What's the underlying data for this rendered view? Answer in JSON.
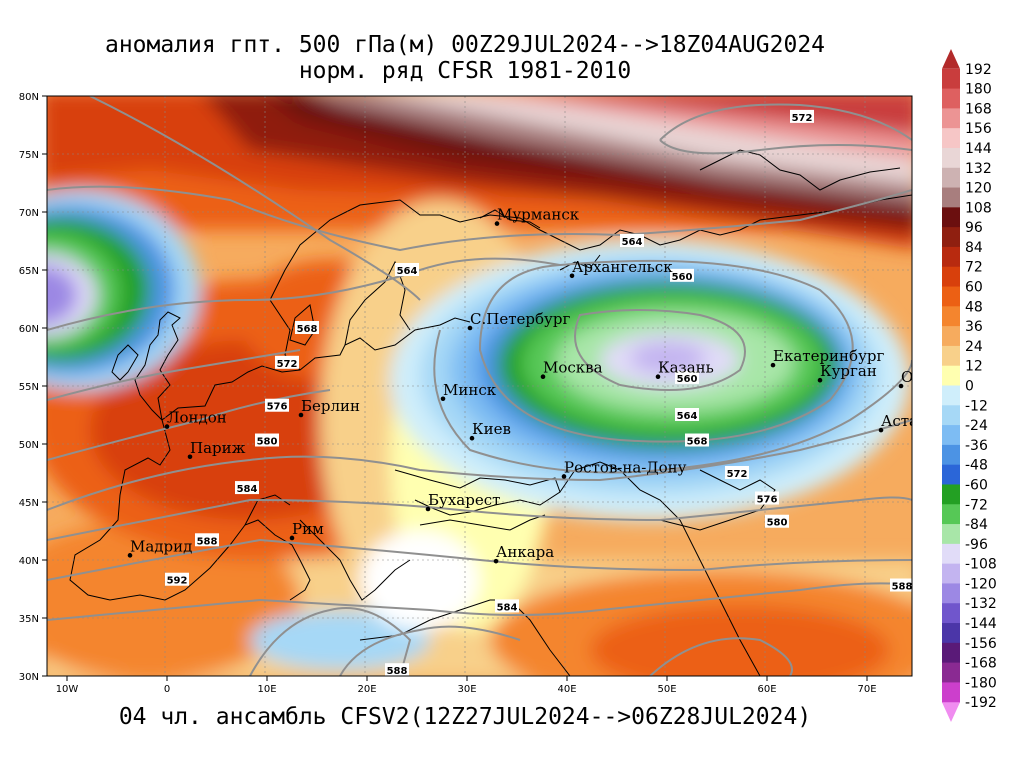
{
  "header": {
    "line1": "аномалия гпт. 500 гПа(м) 00Z29JUL2024-->18Z04AUG2024",
    "line2": "норм. ряд CFSR 1981-2010"
  },
  "footer": "04 чл. ансамбль CFSV2(12Z27JUL2024-->06Z28JUL2024)",
  "axes": {
    "lon_ticks": [
      "10W",
      "0",
      "10E",
      "20E",
      "30E",
      "40E",
      "50E",
      "60E",
      "70E"
    ],
    "lat_ticks": [
      "30N",
      "35N",
      "40N",
      "45N",
      "50N",
      "55N",
      "60N",
      "65N",
      "70N",
      "75N",
      "80N"
    ]
  },
  "cities": [
    {
      "name": "Мурманск",
      "lon": 33,
      "lat": 69
    },
    {
      "name": "Архангельск",
      "lon": 40.5,
      "lat": 64.5
    },
    {
      "name": "С.Петербург",
      "lon": 30.3,
      "lat": 60
    },
    {
      "name": "Москва",
      "lon": 37.6,
      "lat": 55.8
    },
    {
      "name": "Казань",
      "lon": 49.1,
      "lat": 55.8
    },
    {
      "name": "Екатеринбург",
      "lon": 60.6,
      "lat": 56.8
    },
    {
      "name": "Курган",
      "lon": 65.3,
      "lat": 55.5
    },
    {
      "name": "Омск",
      "lon": 73.4,
      "lat": 55
    },
    {
      "name": "Астана",
      "lon": 71.4,
      "lat": 51.2
    },
    {
      "name": "Минск",
      "lon": 27.6,
      "lat": 53.9
    },
    {
      "name": "Киев",
      "lon": 30.5,
      "lat": 50.5
    },
    {
      "name": "Берлин",
      "lon": 13.4,
      "lat": 52.5
    },
    {
      "name": "Лондон",
      "lon": 0,
      "lat": 51.5
    },
    {
      "name": "Париж",
      "lon": 2.3,
      "lat": 48.9
    },
    {
      "name": "Ростов-на-Дону",
      "lon": 39.7,
      "lat": 47.2
    },
    {
      "name": "Бухарест",
      "lon": 26.1,
      "lat": 44.4
    },
    {
      "name": "Рим",
      "lon": 12.5,
      "lat": 41.9
    },
    {
      "name": "Мадрид",
      "lon": -3.7,
      "lat": 40.4
    },
    {
      "name": "Анкара",
      "lon": 32.9,
      "lat": 39.9
    }
  ],
  "contour_labels": [
    {
      "text": "572",
      "lon": 63.5,
      "lat": 78.2
    },
    {
      "text": "564",
      "lon": 46.5,
      "lat": 67.5
    },
    {
      "text": "560",
      "lon": 51.5,
      "lat": 64.5
    },
    {
      "text": "564",
      "lon": 24,
      "lat": 65
    },
    {
      "text": "568",
      "lon": 14,
      "lat": 60
    },
    {
      "text": "572",
      "lon": 12,
      "lat": 57
    },
    {
      "text": "576",
      "lon": 11,
      "lat": 53.3
    },
    {
      "text": "580",
      "lon": 10,
      "lat": 50.3
    },
    {
      "text": "584",
      "lon": 8,
      "lat": 46.2
    },
    {
      "text": "588",
      "lon": 4,
      "lat": 41.7
    },
    {
      "text": "592",
      "lon": 1,
      "lat": 38.3
    },
    {
      "text": "560",
      "lon": 52,
      "lat": 55.7
    },
    {
      "text": "564",
      "lon": 52,
      "lat": 52.5
    },
    {
      "text": "568",
      "lon": 53,
      "lat": 50.3
    },
    {
      "text": "572",
      "lon": 57,
      "lat": 47.5
    },
    {
      "text": "576",
      "lon": 60,
      "lat": 45.3
    },
    {
      "text": "580",
      "lon": 61,
      "lat": 43.3
    },
    {
      "text": "584",
      "lon": 34,
      "lat": 36
    },
    {
      "text": "588",
      "lon": 23,
      "lat": 30.5
    },
    {
      "text": "588",
      "lon": 73.5,
      "lat": 37.8
    }
  ],
  "legend": {
    "levels": [
      "192",
      "180",
      "168",
      "156",
      "144",
      "132",
      "120",
      "108",
      "96",
      "84",
      "72",
      "60",
      "48",
      "36",
      "24",
      "12",
      "0",
      "-12",
      "-24",
      "-36",
      "-48",
      "-60",
      "-72",
      "-84",
      "-96",
      "-108",
      "-120",
      "-132",
      "-144",
      "-156",
      "-168",
      "-180",
      "-192"
    ],
    "colors": [
      "#b22a2a",
      "#c93d3d",
      "#de6060",
      "#ec9494",
      "#f6c6c6",
      "#e9d6d6",
      "#cdb2b2",
      "#a87e7e",
      "#6b0f0f",
      "#8f1f10",
      "#b82a0f",
      "#d8400c",
      "#ec6014",
      "#f4852e",
      "#f6ab5e",
      "#f8d08a",
      "#ffffb0",
      "#cfeefb",
      "#a6d8f6",
      "#7dbcf3",
      "#4c93e4",
      "#2b66d8",
      "#23a023",
      "#56c856",
      "#a8e6a8",
      "#e1dcf8",
      "#c3b4f0",
      "#9c88e4",
      "#7056cc",
      "#4b36a8",
      "#5a1a78",
      "#8a2a92",
      "#cc3fcc",
      "#f08cf0"
    ]
  }
}
